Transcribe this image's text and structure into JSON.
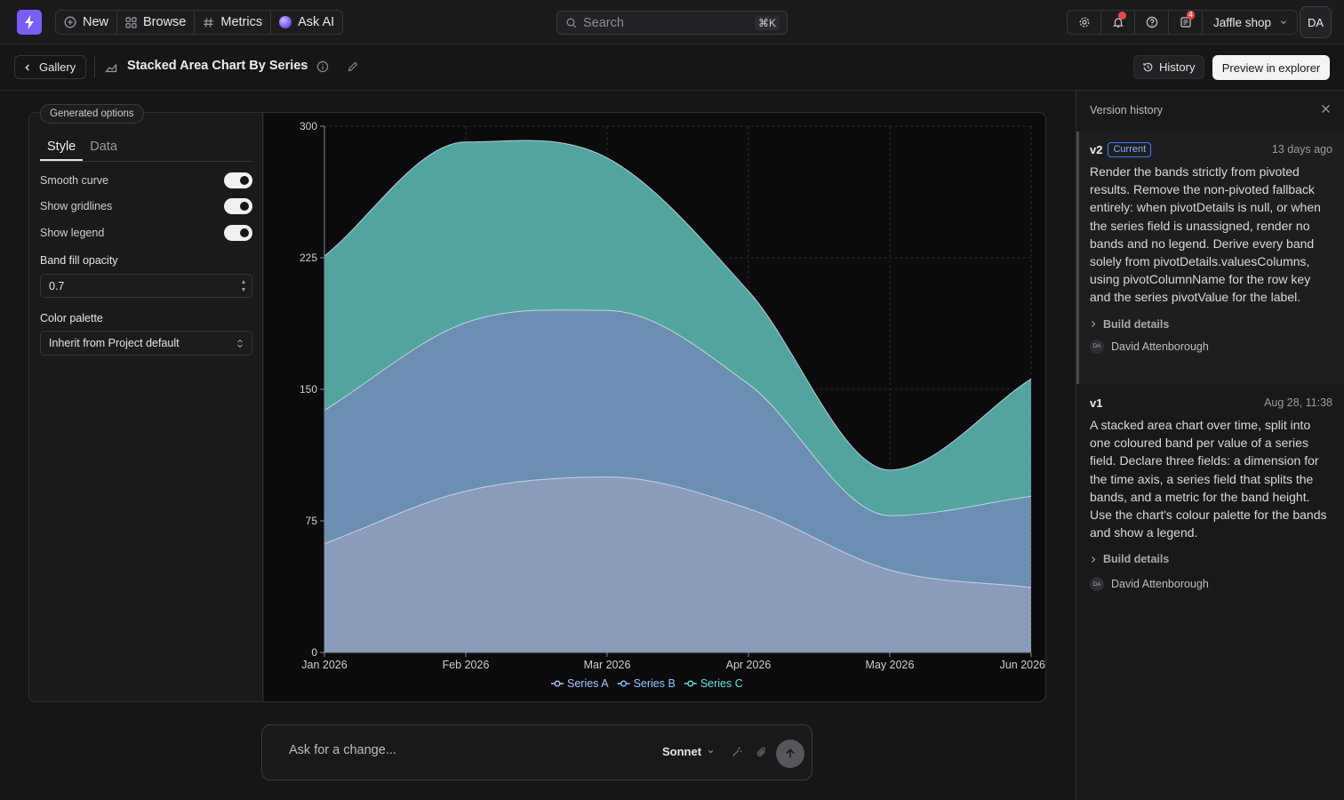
{
  "topbar": {
    "nav": [
      {
        "label": "New",
        "icon": "plus-circle-icon"
      },
      {
        "label": "Browse",
        "icon": "grid-icon"
      },
      {
        "label": "Metrics",
        "icon": "hash-icon"
      },
      {
        "label": "Ask AI",
        "icon": "ai-orb-icon"
      }
    ],
    "search_placeholder": "Search",
    "search_shortcut": "⌘K",
    "notifications_count": "4",
    "workspace": "Jaffle shop",
    "user_initials": "DA"
  },
  "subheader": {
    "back_label": "Gallery",
    "title": "Stacked Area Chart By Series",
    "history_label": "History",
    "preview_label": "Preview in explorer"
  },
  "options": {
    "badge": "Generated options",
    "tabs": [
      "Style",
      "Data"
    ],
    "active_tab": "Style",
    "toggles": [
      {
        "label": "Smooth curve",
        "on": true
      },
      {
        "label": "Show gridlines",
        "on": true
      },
      {
        "label": "Show legend",
        "on": true
      }
    ],
    "opacity_label": "Band fill opacity",
    "opacity_value": "0.7",
    "palette_label": "Color palette",
    "palette_value": "Inherit from Project default"
  },
  "chart_data": {
    "type": "area",
    "stacked": true,
    "smooth": true,
    "grid": true,
    "legend": "bottom-center",
    "categories": [
      "Jan 2026",
      "Feb 2026",
      "Mar 2026",
      "Apr 2026",
      "May 2026",
      "Jun 2026"
    ],
    "yticks": [
      0,
      75,
      150,
      225,
      300
    ],
    "ylim": [
      0,
      300
    ],
    "series": [
      {
        "name": "Series A",
        "values": [
          62,
          92,
          100,
          82,
          47,
          37
        ],
        "color": "#8a9cbb"
      },
      {
        "name": "Series B",
        "values": [
          76,
          96,
          95,
          71,
          31,
          52
        ],
        "color": "#6b8fb2"
      },
      {
        "name": "Series C",
        "values": [
          88,
          103,
          87,
          53,
          26,
          67
        ],
        "color": "#52a49f"
      }
    ]
  },
  "prompt": {
    "placeholder": "Ask for a change...",
    "model": "Sonnet"
  },
  "history": {
    "title": "Version history",
    "entries": [
      {
        "version": "v2",
        "badge": "Current",
        "date": "13 days ago",
        "description": "Render the bands strictly from pivoted results. Remove the non-pivoted fallback entirely: when pivotDetails is null, or when the series field is unassigned, render no bands and no legend. Derive every band solely from pivotDetails.valuesColumns, using pivotColumnName for the row key and the series pivotValue for the label.",
        "details_label": "Build details",
        "author": "David Attenborough",
        "author_initials": "DA"
      },
      {
        "version": "v1",
        "badge": "",
        "date": "Aug 28, 11:38",
        "description": "A stacked area chart over time, split into one coloured band per value of a series field. Declare three fields: a dimension for the time axis, a series field that splits the bands, and a metric for the band height. Use the chart's colour palette for the bands and show a legend.",
        "details_label": "Build details",
        "author": "David Attenborough",
        "author_initials": "DA"
      }
    ]
  }
}
